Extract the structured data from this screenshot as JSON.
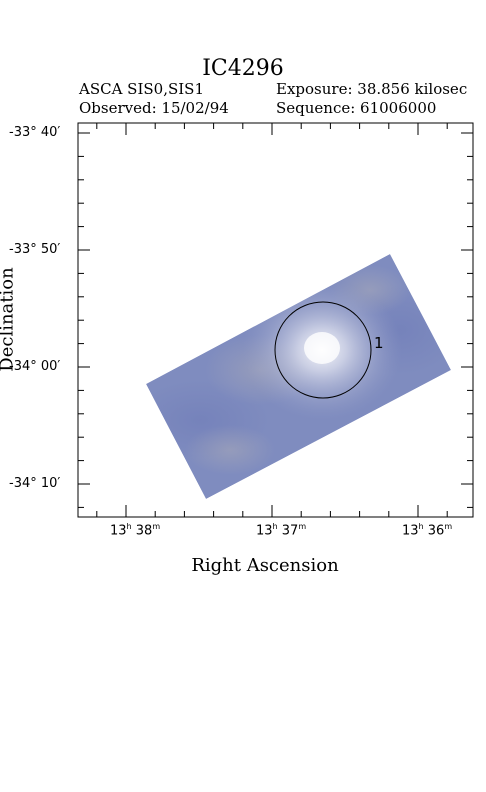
{
  "header": {
    "title": "IC4296",
    "instrument": "ASCA SIS0,SIS1",
    "observed": "Observed: 15/02/94",
    "exposure": "Exposure: 38.856 kilosec",
    "sequence": "Sequence: 61006000"
  },
  "chart_data": {
    "type": "image",
    "title": "IC4296",
    "xlabel": "Right Ascension",
    "ylabel": "Declination",
    "x_axis": {
      "unit": "RA (h m)",
      "direction": "decreasing to the right",
      "major_ticks": [
        {
          "value": "13h 38m",
          "label_h": "13",
          "label_m": "38"
        },
        {
          "value": "13h 37m",
          "label_h": "13",
          "label_m": "37"
        },
        {
          "value": "13h 36m",
          "label_h": "13",
          "label_m": "36"
        }
      ],
      "minor_ticks_per_major": 5
    },
    "y_axis": {
      "unit": "Dec (deg arcmin)",
      "major_ticks": [
        {
          "value": -33.6667,
          "label": "-33° 40′"
        },
        {
          "value": -33.8333,
          "label": "-33° 50′"
        },
        {
          "value": -34.0,
          "label": "-34° 00′"
        },
        {
          "value": -34.1667,
          "label": "-34° 10′"
        }
      ],
      "minor_ticks_per_major": 5
    },
    "annotations": [
      {
        "type": "circle",
        "label": "1",
        "description": "source extraction region centered on bright emission"
      }
    ],
    "image_colors": {
      "background_field": "#7f8cbf",
      "bright_core": "#f2f2f8"
    }
  }
}
